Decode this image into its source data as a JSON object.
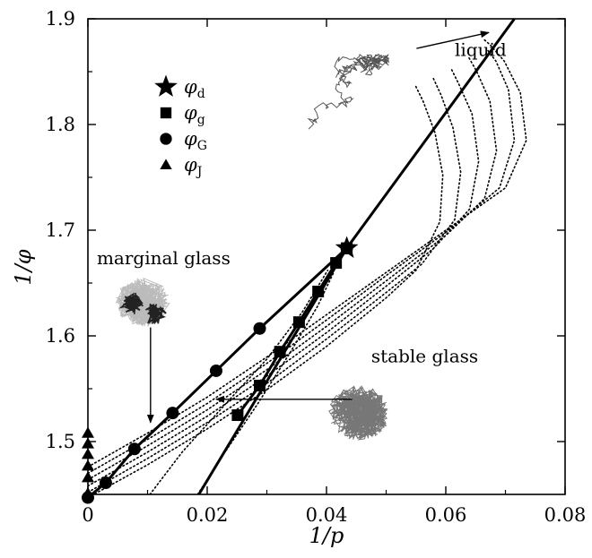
{
  "chart_data": {
    "type": "line",
    "xlabel": "1/p",
    "ylabel": "1/φ",
    "xlim": [
      0,
      0.08
    ],
    "ylim": [
      1.45,
      1.9
    ],
    "x_ticks": [
      0,
      0.02,
      0.04,
      0.06,
      0.08
    ],
    "x_tick_labels": [
      "0",
      "0.02",
      "0.04",
      "0.06",
      "0.08"
    ],
    "y_ticks": [
      1.5,
      1.6,
      1.7,
      1.8,
      1.9
    ],
    "y_tick_labels": [
      "1.5",
      "1.6",
      "1.7",
      "1.8",
      "1.9"
    ],
    "legend": {
      "position": "top-left",
      "entries": [
        {
          "marker": "star",
          "symbol": "φ",
          "sub": "d"
        },
        {
          "marker": "square",
          "symbol": "φ",
          "sub": "g"
        },
        {
          "marker": "circle",
          "symbol": "φ",
          "sub": "G"
        },
        {
          "marker": "triangle",
          "symbol": "φ",
          "sub": "J"
        }
      ]
    },
    "series": [
      {
        "role": "liquid-eos",
        "style": "solid",
        "x": [
          0.0186,
          0.0434,
          0.0715
        ],
        "y": [
          1.45,
          1.683,
          1.9
        ]
      },
      {
        "role": "phi-d",
        "marker": "star",
        "x": [
          0.0434
        ],
        "y": [
          1.683
        ]
      },
      {
        "role": "phi-g",
        "marker": "square",
        "style": "solid",
        "x": [
          0.0251,
          0.0288,
          0.0322,
          0.0354,
          0.0386,
          0.0416,
          0.0434
        ],
        "y": [
          1.525,
          1.553,
          1.585,
          1.613,
          1.642,
          1.669,
          1.683
        ]
      },
      {
        "role": "phi-G",
        "marker": "circle",
        "style": "solid",
        "x": [
          0,
          0.003,
          0.0078,
          0.0142,
          0.0215,
          0.0288,
          0.0434
        ],
        "y": [
          1.447,
          1.461,
          1.493,
          1.527,
          1.567,
          1.607,
          1.683
        ]
      },
      {
        "role": "phi-J",
        "marker": "triangle",
        "x": [
          0,
          0,
          0,
          0,
          0,
          0
        ],
        "y": [
          1.451,
          1.466,
          1.477,
          1.488,
          1.498,
          1.508
        ]
      },
      {
        "role": "glass-eos",
        "style": "dotted",
        "x": [
          0,
          0.01,
          0.02,
          0.03,
          0.04,
          0.05,
          0.055,
          0.059,
          0.0595,
          0.0582,
          0.0562,
          0.0548
        ],
        "y": [
          1.447,
          1.478,
          1.512,
          1.549,
          1.59,
          1.636,
          1.662,
          1.708,
          1.752,
          1.792,
          1.822,
          1.838
        ]
      },
      {
        "role": "glass-eos",
        "style": "dotted",
        "x": [
          0,
          0.01,
          0.02,
          0.03,
          0.04,
          0.05,
          0.056,
          0.0615,
          0.0625,
          0.0612,
          0.0592,
          0.0578
        ],
        "y": [
          1.452,
          1.484,
          1.518,
          1.555,
          1.597,
          1.641,
          1.668,
          1.71,
          1.755,
          1.797,
          1.828,
          1.845
        ]
      },
      {
        "role": "glass-eos",
        "style": "dotted",
        "x": [
          0,
          0.01,
          0.02,
          0.03,
          0.04,
          0.05,
          0.058,
          0.064,
          0.0655,
          0.0644,
          0.0622,
          0.0608
        ],
        "y": [
          1.458,
          1.49,
          1.524,
          1.562,
          1.603,
          1.647,
          1.683,
          1.72,
          1.765,
          1.81,
          1.838,
          1.854
        ]
      },
      {
        "role": "glass-eos",
        "style": "dotted",
        "x": [
          0,
          0.01,
          0.02,
          0.03,
          0.04,
          0.05,
          0.06,
          0.0665,
          0.0685,
          0.0674,
          0.0652,
          0.0638
        ],
        "y": [
          1.464,
          1.496,
          1.53,
          1.568,
          1.609,
          1.652,
          1.695,
          1.73,
          1.775,
          1.822,
          1.85,
          1.864
        ]
      },
      {
        "role": "glass-eos",
        "style": "dotted",
        "x": [
          0,
          0.01,
          0.02,
          0.03,
          0.04,
          0.05,
          0.06,
          0.069,
          0.0715,
          0.0705,
          0.0684,
          0.0668
        ],
        "y": [
          1.47,
          1.502,
          1.536,
          1.574,
          1.615,
          1.657,
          1.698,
          1.74,
          1.785,
          1.833,
          1.86,
          1.872
        ]
      },
      {
        "role": "glass-eos",
        "style": "dotted",
        "x": [
          0,
          0.01,
          0.02,
          0.03,
          0.04,
          0.05,
          0.06,
          0.07,
          0.0735,
          0.0725,
          0.0698,
          0.0675,
          0.0665
        ],
        "y": [
          1.476,
          1.508,
          1.542,
          1.58,
          1.62,
          1.66,
          1.7,
          1.74,
          1.785,
          1.83,
          1.86,
          1.875,
          1.88
        ]
      },
      {
        "role": "glass-eos",
        "style": "dotted",
        "x": [
          0.0104,
          0.0158,
          0.0225,
          0.03,
          0.036,
          0.0402
        ],
        "y": [
          1.45,
          1.49,
          1.532,
          1.578,
          1.623,
          1.662
        ]
      },
      {
        "role": "glass-eos",
        "style": "dotted",
        "x": [
          0.0184,
          0.0225,
          0.0285,
          0.034,
          0.0385,
          0.0412
        ],
        "y": [
          1.45,
          1.486,
          1.536,
          1.585,
          1.628,
          1.66
        ]
      }
    ],
    "annotations": [
      {
        "text": "liquid",
        "x": 0.0615,
        "y": 1.865
      },
      {
        "text": "marginal glass",
        "x": 0.0015,
        "y": 1.668
      },
      {
        "text": "stable glass",
        "x": 0.0475,
        "y": 1.575
      }
    ],
    "arrows": [
      {
        "from": [
          0.0551,
          1.872
        ],
        "to": [
          0.0672,
          1.887
        ]
      },
      {
        "from": [
          0.0105,
          1.608
        ],
        "to": [
          0.0105,
          1.518
        ]
      },
      {
        "from": [
          0.0443,
          1.54
        ],
        "to": [
          0.0215,
          1.54
        ]
      }
    ],
    "trajectories": [
      {
        "label": "liquid",
        "color": "#555555",
        "cx": 0.0437,
        "cy": 1.82,
        "spread": "wide"
      },
      {
        "label": "marginal glass",
        "color": "#bbbbbb",
        "cx": 0.0092,
        "cy": 1.632,
        "spread": "medium"
      },
      {
        "label": "stable glass",
        "color": "#777777",
        "cx": 0.0455,
        "cy": 1.527,
        "spread": "tight"
      }
    ]
  }
}
